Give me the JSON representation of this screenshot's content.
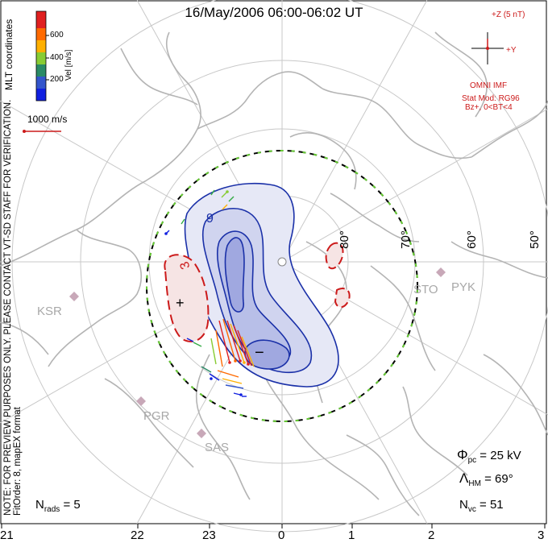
{
  "title": "16/May/2006 06:00-06:02 UT",
  "colorbar": {
    "label": "Vel [m/s]",
    "ticks": [
      "600",
      "400",
      "200"
    ],
    "colors": [
      "#e02020",
      "#ff6a00",
      "#ffb000",
      "#f0e000",
      "#88cc33",
      "#33aa44",
      "#2a8a66",
      "#3355cc",
      "#1020e0"
    ]
  },
  "coord_system": "MLT coordinates",
  "reference_vector": "1000 m/s",
  "imf": {
    "z_label": "+Z (5 nT)",
    "y_label": "+Y",
    "source": "OMNI IMF",
    "stat_mod": "Stat Mod: RG96",
    "condition": "Bz+, 0<BT<4"
  },
  "note_text": "NOTE: FOR PREVIEW PURPOSES ONLY. PLEASE CONTACT VT-SD STAFF FOR VERIFICATION.",
  "fit_order_text": "FitOrder: 8, mapEX format",
  "latitude_labels": [
    "80°",
    "70°",
    "60°",
    "50°"
  ],
  "contour_labels": {
    "plus": "+",
    "minus": "−",
    "c9": "9",
    "c3": "3"
  },
  "stations": [
    "KSR",
    "STO",
    "PYK",
    "PGR",
    "SAS"
  ],
  "stats": {
    "phi_pc": "25 kV",
    "lambda_hm": "69°",
    "n_vc": "51",
    "n_rads": "5"
  },
  "mlt_ticks": [
    "21",
    "22",
    "23",
    "0",
    "1",
    "2",
    "3"
  ]
}
